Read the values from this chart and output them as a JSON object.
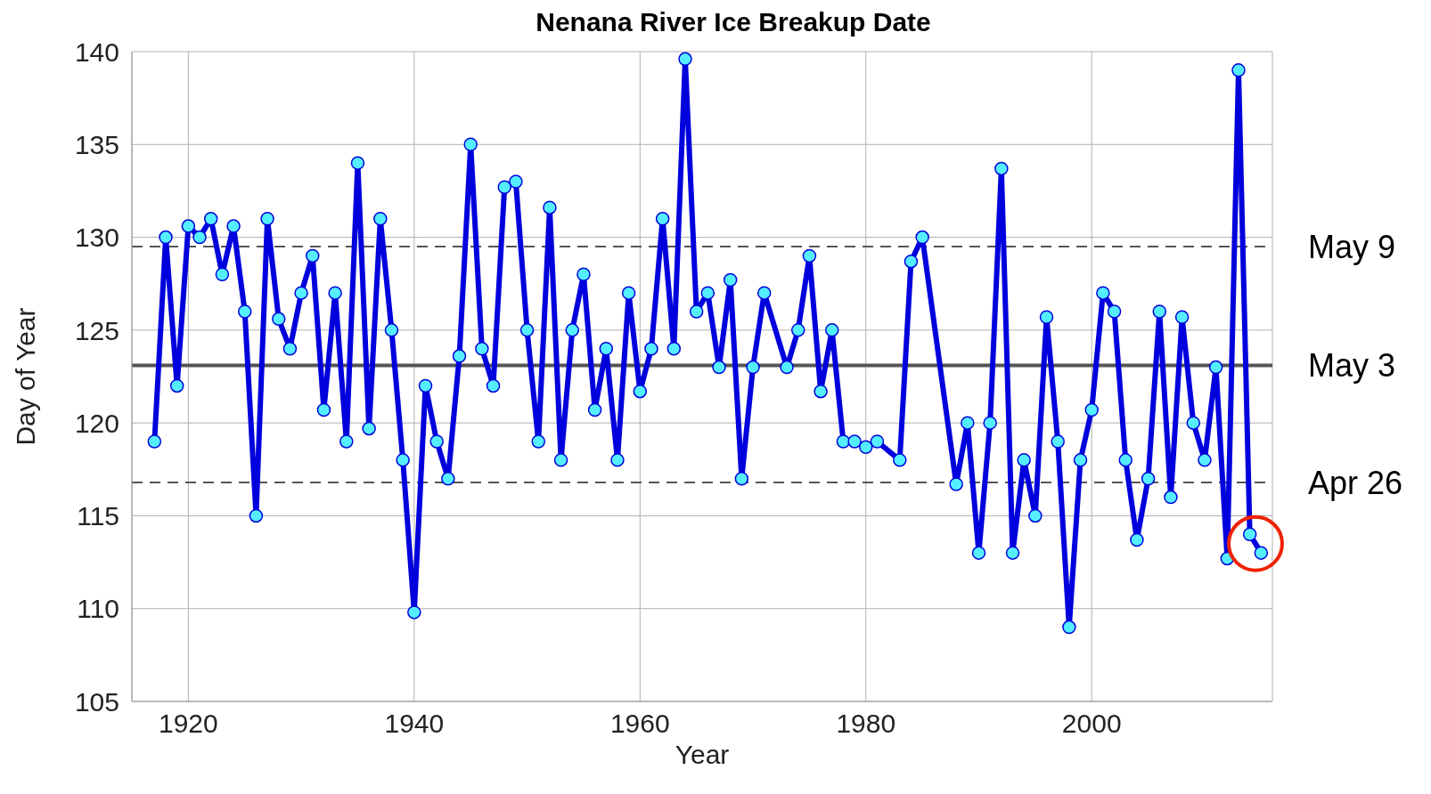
{
  "chart_data": {
    "type": "line",
    "title": "Nenana River Ice Breakup Date",
    "xlabel": "Year",
    "ylabel": "Day of Year",
    "x": [
      1917,
      1918,
      1919,
      1920,
      1921,
      1922,
      1923,
      1924,
      1925,
      1926,
      1927,
      1928,
      1929,
      1930,
      1931,
      1932,
      1933,
      1934,
      1935,
      1936,
      1937,
      1938,
      1939,
      1940,
      1941,
      1942,
      1943,
      1944,
      1945,
      1946,
      1947,
      1948,
      1949,
      1950,
      1951,
      1952,
      1953,
      1954,
      1955,
      1956,
      1957,
      1958,
      1959,
      1960,
      1961,
      1962,
      1963,
      1964,
      1965,
      1966,
      1967,
      1968,
      1969,
      1970,
      1971,
      1973,
      1974,
      1975,
      1976,
      1977,
      1978,
      1979,
      1980,
      1981,
      1983,
      1984,
      1985,
      1988,
      1989,
      1990,
      1991,
      1992,
      1993,
      1994,
      1995,
      1996,
      1997,
      1998,
      1999,
      2000,
      2001,
      2002,
      2003,
      2004,
      2005,
      2006,
      2007,
      2008,
      2009,
      2010,
      2011,
      2012,
      2013,
      2014,
      2015
    ],
    "series": [
      {
        "color": "#0000dd",
        "values": [
          119,
          130,
          122,
          130.6,
          130,
          131,
          128,
          130.6,
          126,
          115,
          131,
          125.6,
          124,
          127,
          129,
          120.7,
          127,
          119,
          134,
          119.7,
          131,
          125,
          118,
          109.8,
          122,
          119,
          117,
          123.6,
          135,
          124,
          122,
          132.7,
          133,
          125,
          119,
          131.6,
          118,
          125,
          128,
          120.7,
          124,
          118,
          127,
          121.7,
          124,
          131,
          124,
          139.6,
          126,
          127,
          123,
          127.7,
          117,
          123,
          127,
          123,
          125,
          129,
          121.7,
          125,
          119,
          119,
          118.7,
          119,
          118,
          128.7,
          130,
          116.7,
          120,
          113,
          120,
          133.7,
          113,
          118,
          115,
          125.7,
          119,
          109,
          118,
          120.7,
          127,
          126,
          118,
          113.7,
          117,
          126,
          116,
          125.7,
          120,
          118,
          123,
          112.7,
          139,
          114,
          113
        ]
      }
    ],
    "marker": "circle",
    "line_style": "solid",
    "grid": true,
    "xlim": [
      1915,
      2016
    ],
    "xticks": [
      1920,
      1940,
      1960,
      1980,
      2000
    ],
    "ylim": [
      105,
      140
    ],
    "yticks": [
      105,
      110,
      115,
      120,
      125,
      130,
      135,
      140
    ],
    "ref_lines": [
      {
        "axis": "y",
        "value": 129.5,
        "label": "May 9",
        "line_style": "dashed",
        "color": "#555555"
      },
      {
        "axis": "y",
        "value": 123.1,
        "label": "May 3",
        "line_style": "solid",
        "color": "#555555"
      },
      {
        "axis": "y",
        "value": 116.8,
        "label": "Apr 26",
        "line_style": "dashed",
        "color": "#555555"
      }
    ]
  }
}
